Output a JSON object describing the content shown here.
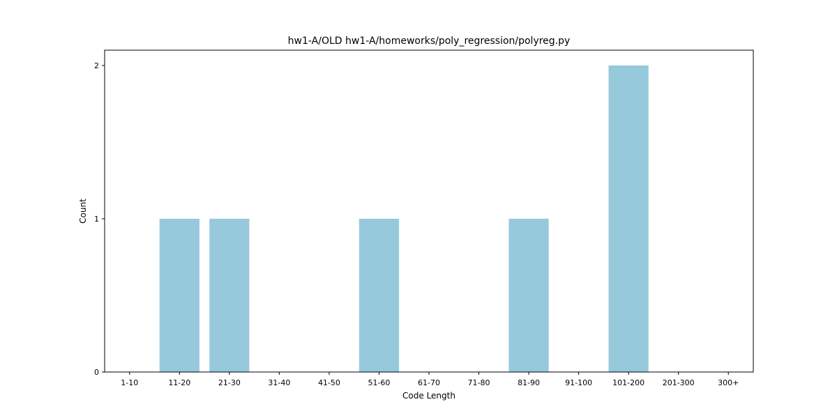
{
  "chart_data": {
    "type": "bar",
    "title": "hw1-A/OLD hw1-A/homeworks/poly_regression/polyreg.py",
    "xlabel": "Code Length",
    "ylabel": "Count",
    "categories": [
      "1-10",
      "11-20",
      "21-30",
      "31-40",
      "41-50",
      "51-60",
      "61-70",
      "71-80",
      "81-90",
      "91-100",
      "101-200",
      "201-300",
      "300+"
    ],
    "values": [
      0,
      1,
      1,
      0,
      0,
      1,
      0,
      0,
      1,
      0,
      2,
      0,
      0
    ],
    "yticks": [
      0,
      1,
      2
    ],
    "ylim": [
      0,
      2.1
    ],
    "bar_color": "#96c9dc",
    "grid": false,
    "legend": "none"
  }
}
